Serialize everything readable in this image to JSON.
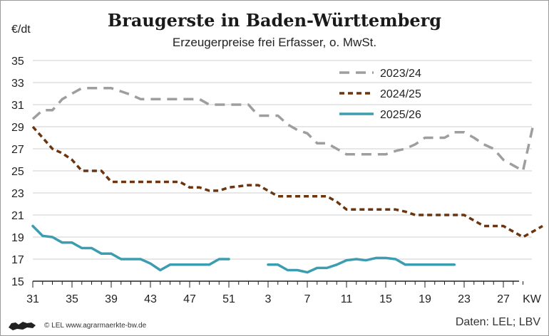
{
  "title": "Braugerste in Baden-Württemberg",
  "subtitle": "Erzeugerpreise frei Erfasser, o. MwSt.",
  "unit": "€/dt",
  "credit": "© LEL www.agrarmaerkte-bw.de",
  "source": "Daten: LEL; LBV",
  "chart_data": {
    "type": "line",
    "xlabel": "KW",
    "ylim": [
      15,
      35
    ],
    "y_ticks": [
      "15",
      "17",
      "19",
      "21",
      "23",
      "25",
      "27",
      "29",
      "31",
      "33",
      "35"
    ],
    "x_ticks": [
      "31",
      "35",
      "39",
      "43",
      "47",
      "51",
      "3",
      "7",
      "11",
      "15",
      "19",
      "23",
      "27"
    ],
    "grid": true,
    "legend_position": "top-right",
    "series": [
      {
        "name": "2023/24",
        "color": "#9e9e9e",
        "dash": "long",
        "values": [
          29.7,
          30.5,
          30.5,
          31.5,
          32,
          32.5,
          32.5,
          32.5,
          32.5,
          32.2,
          31.9,
          31.5,
          31.5,
          31.5,
          31.5,
          31.5,
          31.5,
          31.5,
          31,
          31,
          31,
          31,
          31,
          30,
          30,
          30,
          29.2,
          28.7,
          28.4,
          27.5,
          27.5,
          27,
          26.5,
          26.5,
          26.5,
          26.5,
          26.5,
          26.8,
          27,
          27.4,
          28,
          28,
          28,
          28.5,
          28.5,
          28,
          27.4,
          27,
          26,
          25.5,
          25,
          29
        ]
      },
      {
        "name": "2024/25",
        "color": "#6b3510",
        "dash": "short",
        "values": [
          29,
          28,
          27,
          26.6,
          26,
          25,
          25,
          25,
          24,
          24,
          24,
          24,
          24,
          24,
          24,
          24,
          23.5,
          23.5,
          23.2,
          23.2,
          23.5,
          23.6,
          23.7,
          23.7,
          23.2,
          22.7,
          22.7,
          22.7,
          22.7,
          22.7,
          22.7,
          22.2,
          21.5,
          21.5,
          21.5,
          21.5,
          21.5,
          21.5,
          21.3,
          21,
          21,
          21,
          21,
          21,
          21,
          20.5,
          20,
          20,
          20,
          19.5,
          19,
          19.5,
          20
        ]
      },
      {
        "name": "2025/26",
        "color": "#3c9db0",
        "dash": "solid",
        "values": [
          20,
          19.1,
          19,
          18.5,
          18.5,
          18,
          18,
          17.5,
          17.5,
          17,
          17,
          17,
          16.6,
          16,
          16.5,
          16.5,
          16.5,
          16.5,
          16.5,
          17,
          17,
          null,
          null,
          null,
          16.5,
          16.5,
          16,
          16,
          15.8,
          16.2,
          16.2,
          16.5,
          16.9,
          17,
          16.9,
          17.1,
          17.1,
          17,
          16.5,
          16.5,
          16.5,
          16.5,
          16.5,
          16.5
        ]
      }
    ]
  }
}
